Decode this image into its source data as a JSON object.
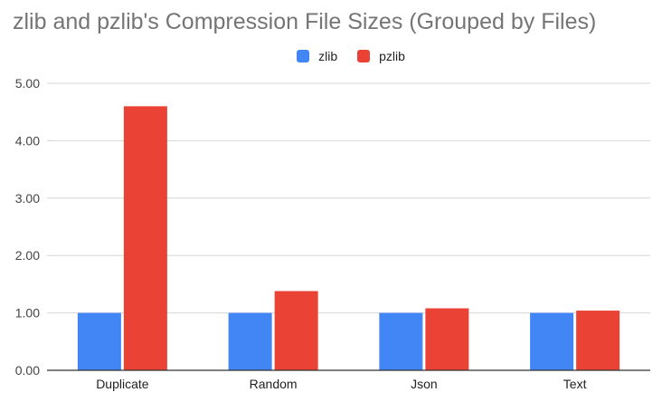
{
  "chart_data": {
    "type": "bar",
    "title": "zlib and pzlib's Compression File Sizes (Grouped by Files)",
    "xlabel": "",
    "ylabel": "",
    "categories": [
      "Duplicate",
      "Random",
      "Json",
      "Text"
    ],
    "series": [
      {
        "name": "zlib",
        "color": "#4285f4",
        "values": [
          1.0,
          1.0,
          1.0,
          1.0
        ]
      },
      {
        "name": "pzlib",
        "color": "#ea4335",
        "values": [
          4.6,
          1.38,
          1.08,
          1.04
        ]
      }
    ],
    "ylim": [
      0,
      5
    ],
    "yticks": [
      "0.00",
      "1.00",
      "2.00",
      "3.00",
      "4.00",
      "5.00"
    ],
    "grid": true,
    "legend_position": "top-center"
  }
}
